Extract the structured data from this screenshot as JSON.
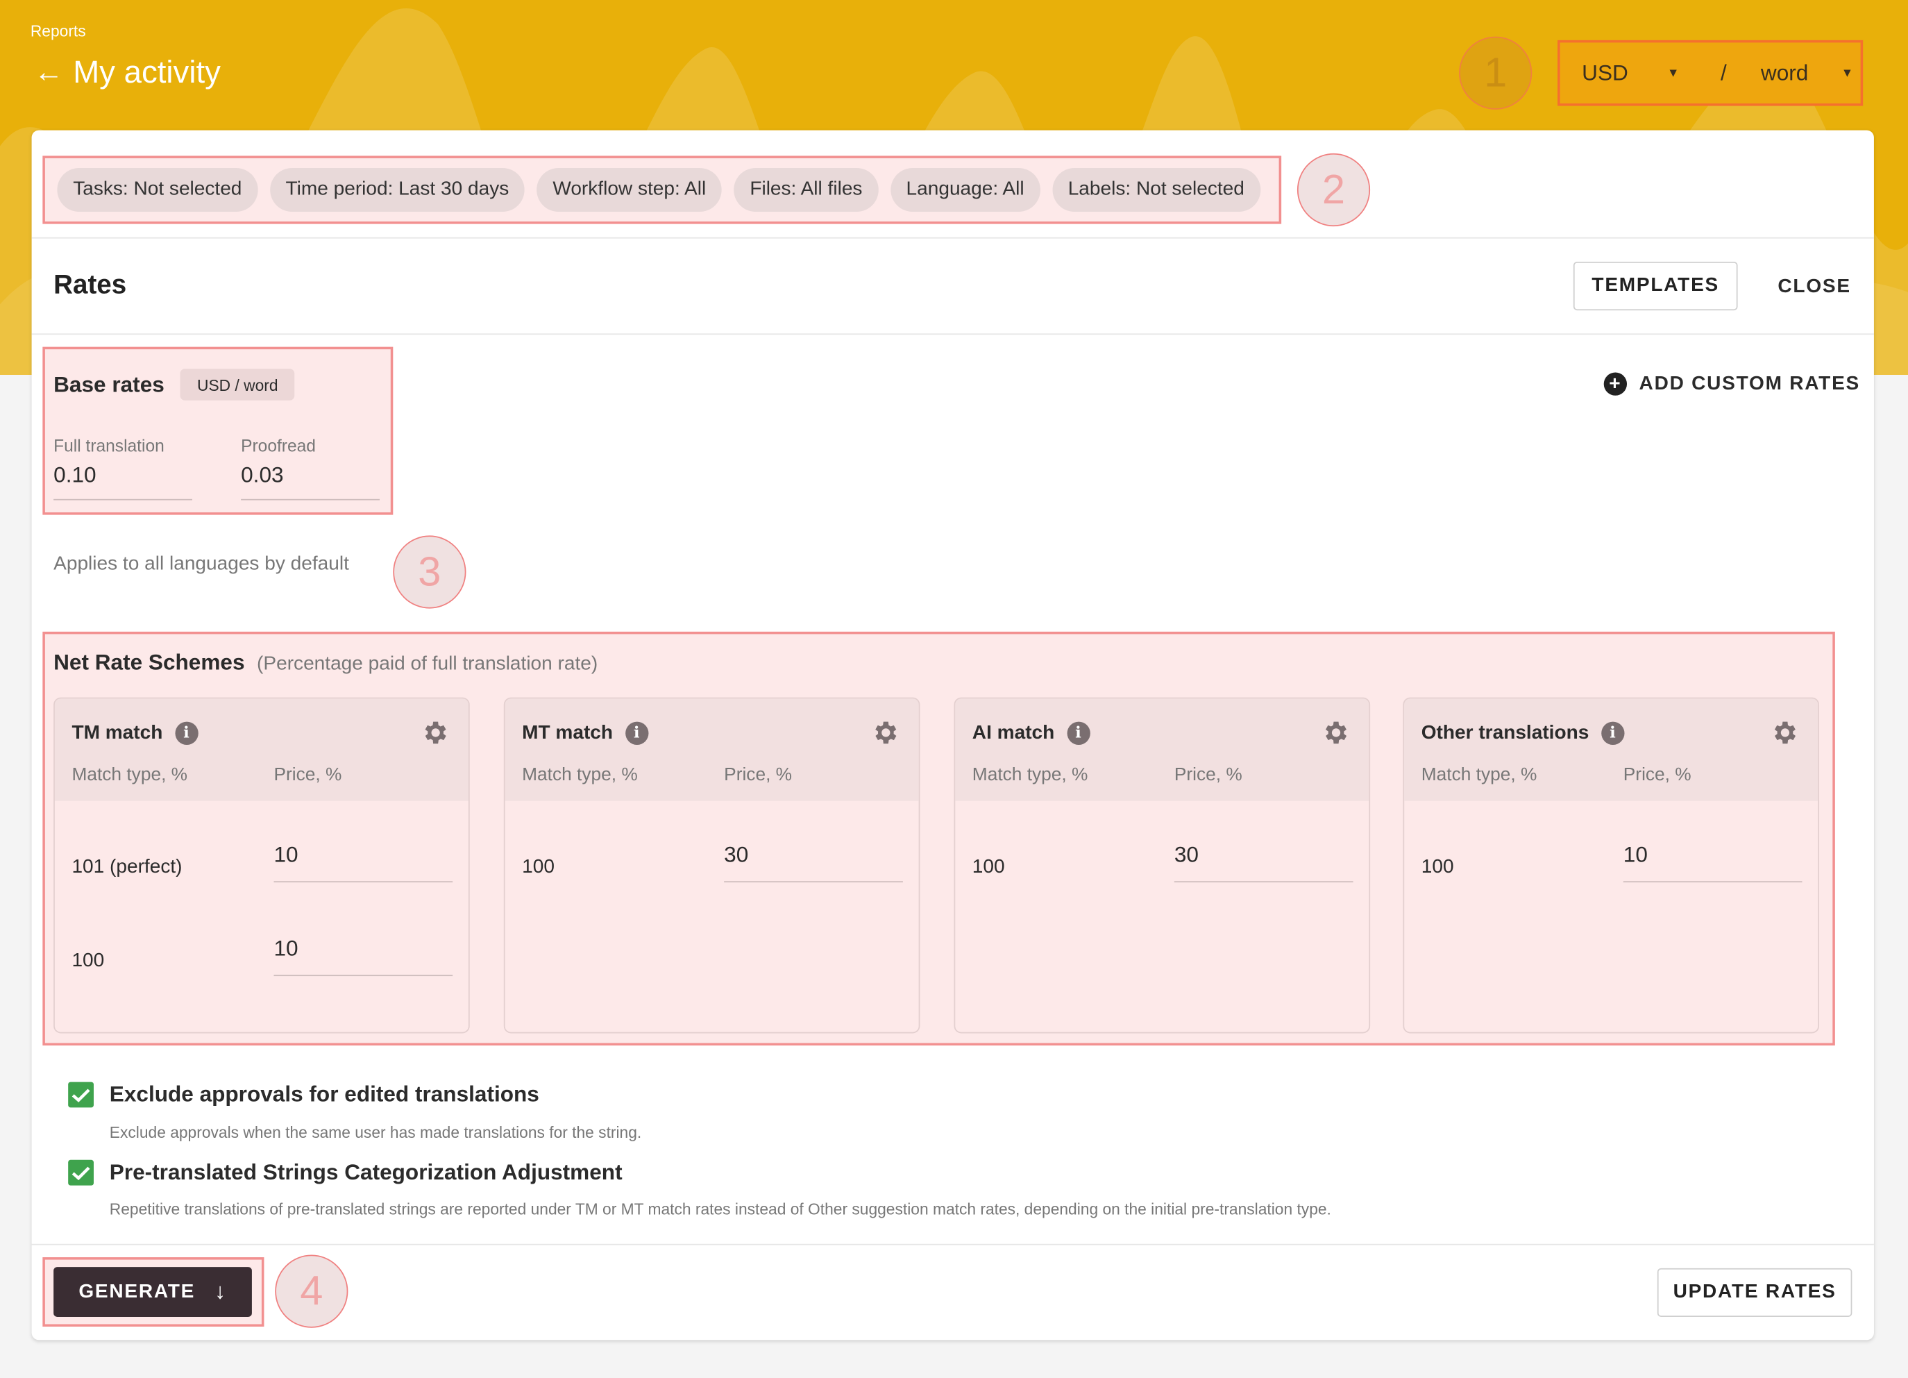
{
  "header": {
    "breadcrumb": "Reports",
    "title": "My activity",
    "step1": "1",
    "currency": "USD",
    "separator": "/",
    "unit": "word"
  },
  "filters": {
    "step": "2",
    "chips": [
      "Tasks: Not selected",
      "Time period: Last 30 days",
      "Workflow step: All",
      "Files: All files",
      "Language: All",
      "Labels: Not selected"
    ]
  },
  "rates": {
    "title": "Rates",
    "templates": "TEMPLATES",
    "close": "CLOSE",
    "add_custom": "ADD CUSTOM RATES"
  },
  "base": {
    "title": "Base rates",
    "badge": "USD / word",
    "full_label": "Full translation",
    "full_value": "0.10",
    "proof_label": "Proofread",
    "proof_value": "0.03",
    "note": "Applies to all languages by default",
    "step": "3"
  },
  "net": {
    "title": "Net Rate Schemes",
    "subtitle": "(Percentage paid of full translation rate)",
    "col_match": "Match type, %",
    "col_price": "Price, %",
    "schemes": [
      {
        "title": "TM match",
        "rows": [
          {
            "match": "101 (perfect)",
            "price": "10"
          },
          {
            "match": "100",
            "price": "10"
          }
        ]
      },
      {
        "title": "MT match",
        "rows": [
          {
            "match": "100",
            "price": "30"
          }
        ]
      },
      {
        "title": "AI match",
        "rows": [
          {
            "match": "100",
            "price": "30"
          }
        ]
      },
      {
        "title": "Other translations",
        "rows": [
          {
            "match": "100",
            "price": "10"
          }
        ]
      }
    ]
  },
  "options": [
    {
      "label": "Exclude approvals for edited translations",
      "desc": "Exclude approvals when the same user has made translations for the string.",
      "checked": true
    },
    {
      "label": "Pre-translated Strings Categorization Adjustment",
      "desc": "Repetitive translations of pre-translated strings are reported under TM or MT match rates instead of Other suggestion match rates, depending on the initial pre-translation type.",
      "checked": true
    }
  ],
  "footer": {
    "generate": "GENERATE",
    "update": "UPDATE RATES",
    "step": "4"
  },
  "colors": {
    "accent": "#e8b00a",
    "highlight": "#f29090",
    "check": "#3fa34d",
    "primary_button": "#3a2d33"
  }
}
